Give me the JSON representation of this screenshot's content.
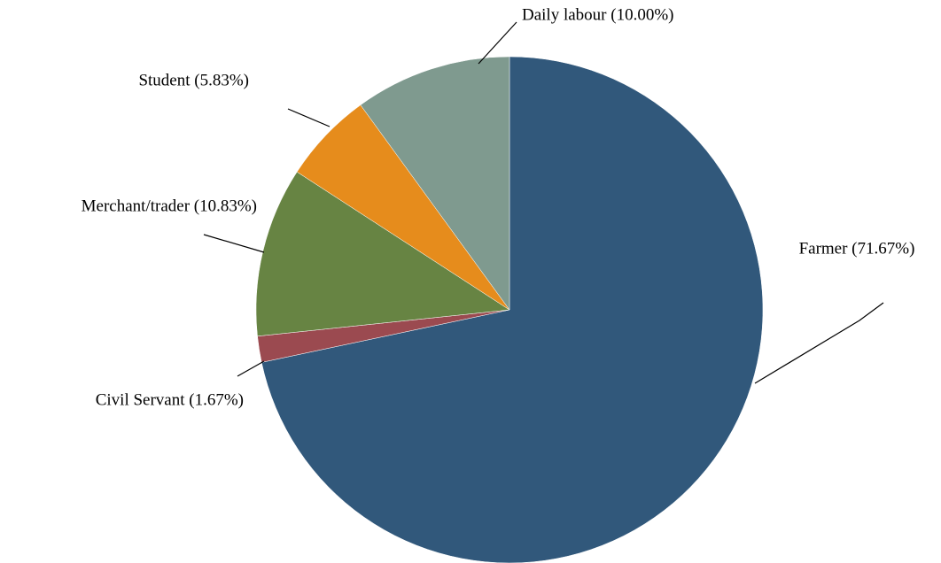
{
  "chart_data": {
    "type": "pie",
    "categories": [
      "Farmer (71.67%)",
      "Civil Servant (1.67%)",
      "Merchant/trader (10.83%)",
      "Student (5.83%)",
      "Daily labour (10.00%)"
    ],
    "values": [
      71.67,
      1.67,
      10.83,
      5.83,
      10.0
    ],
    "colors": [
      "#31587b",
      "#9b4a50",
      "#678443",
      "#e68c1c",
      "#7f9a8f"
    ]
  }
}
